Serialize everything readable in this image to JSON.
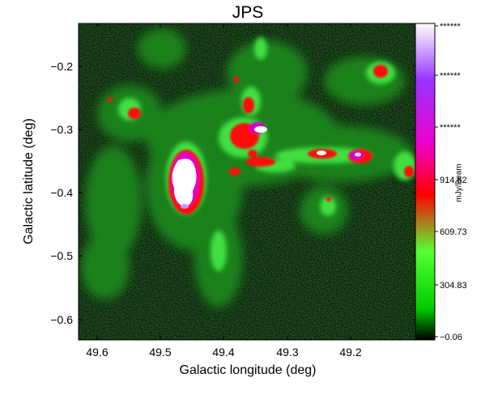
{
  "title": "JPS",
  "xlabel": "Galactic longitude (deg)",
  "ylabel": "Galactic latitude (deg)",
  "x_ticks": [
    "49.6",
    "49.5",
    "49.4",
    "49.3",
    "49.2"
  ],
  "y_ticks": [
    "−0.2",
    "−0.3",
    "−0.4",
    "−0.5",
    "−0.6"
  ],
  "colorbar": {
    "label": "mJy/Beam",
    "ticks": [
      "******",
      "******",
      "******",
      "914.62",
      "609.73",
      "304.83",
      "−0.06"
    ],
    "colors": [
      "#000000",
      "#00cc00",
      "#55ff33",
      "#ff0000",
      "#ee00cc",
      "#9933ff",
      "#ffffff"
    ]
  },
  "image": {
    "x_range_deg": [
      49.65,
      49.15
    ],
    "y_range_deg": [
      -0.14,
      -0.63
    ],
    "colormap": "black-green-red-magenta-purple-white"
  }
}
